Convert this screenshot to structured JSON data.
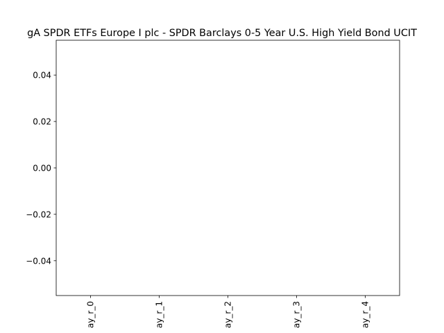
{
  "chart_data": {
    "type": "bar",
    "title": "gA SPDR ETFs Europe I plc - SPDR Barclays 0-5 Year U.S. High Yield Bond UCIT",
    "categories": [
      "ay_r_0",
      "ay_r_1",
      "ay_r_2",
      "ay_r_3",
      "ay_r_4"
    ],
    "ylim": [
      -0.055,
      0.055
    ],
    "yticks": [
      {
        "value": -0.04,
        "label": "−0.04"
      },
      {
        "value": -0.02,
        "label": "−0.02"
      },
      {
        "value": 0,
        "label": "0.00"
      },
      {
        "value": 0.02,
        "label": "0.02"
      },
      {
        "value": 0.04,
        "label": "0.04"
      }
    ]
  }
}
